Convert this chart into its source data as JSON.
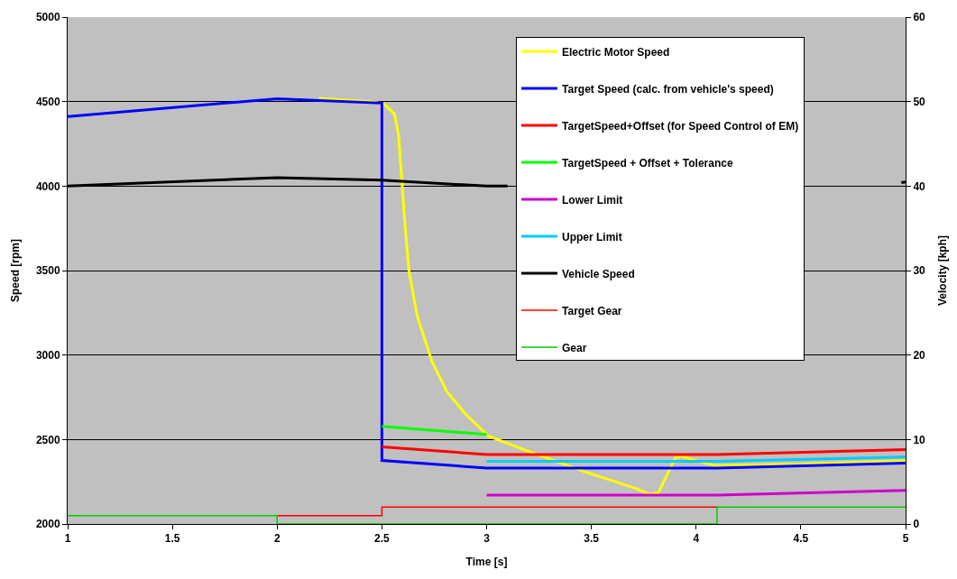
{
  "chart_data": {
    "type": "line",
    "xlabel": "Time [s]",
    "ylabel": "Speed [rpm]",
    "y2label": "Velocity [kph]",
    "xlim": [
      1,
      5
    ],
    "xticks": [
      1,
      1.5,
      2,
      2.5,
      3,
      3.5,
      4,
      4.5,
      5
    ],
    "ylim": [
      2000,
      5000
    ],
    "yticks": [
      2000,
      2500,
      3000,
      3500,
      4000,
      4500,
      5000
    ],
    "y2lim": [
      0,
      60
    ],
    "y2ticks": [
      0,
      10,
      20,
      30,
      40,
      50,
      60
    ],
    "grid": "y",
    "legend": "top right",
    "marker": "none",
    "line_style": "solid",
    "series": [
      {
        "name": "Electric Motor Speed",
        "color": "#ffff00",
        "x": [
          2.2,
          2.45,
          2.51,
          2.56,
          2.58,
          2.595,
          2.61,
          2.63,
          2.67,
          2.74,
          2.81,
          2.9,
          3.01,
          3.2,
          3.46,
          3.71,
          3.78,
          3.82,
          3.9,
          3.93,
          4.09,
          4.5,
          5
        ],
        "values": [
          4520,
          4500,
          4487,
          4427,
          4300,
          4036,
          3775,
          3490,
          3224,
          2960,
          2784,
          2650,
          2519,
          2430,
          2313,
          2212,
          2175,
          2185,
          2390,
          2400,
          2345,
          2355,
          2375
        ]
      },
      {
        "name": "Target Speed (calc. from vehicle's speed)",
        "color": "#0000ff",
        "x": [
          1,
          2,
          2.5,
          2.5,
          3,
          4.1,
          5
        ],
        "values": [
          4411,
          4517,
          4491,
          2376,
          2331,
          2331,
          2360
        ]
      },
      {
        "name": "TargetSpeed+Offset (for Speed Control of EM)",
        "color": "#ff0000",
        "x": [
          2.5,
          3,
          4.1,
          5
        ],
        "values": [
          2456,
          2411,
          2411,
          2440
        ]
      },
      {
        "name": "TargetSpeed + Offset + Tolerance",
        "color": "#00ff00",
        "x": [
          2.5,
          3
        ],
        "values": [
          2578,
          2530
        ]
      },
      {
        "name": "Lower Limit",
        "color": "#cc00cc",
        "x": [
          3,
          4.1,
          5
        ],
        "values": [
          2171,
          2171,
          2199
        ]
      },
      {
        "name": "Upper Limit",
        "color": "#00ccff",
        "x": [
          3,
          4.1,
          5
        ],
        "values": [
          2371,
          2371,
          2397
        ]
      },
      {
        "name": "Vehicle Speed",
        "color": "#000000",
        "axis": "y2",
        "x": [
          1,
          2,
          2.5,
          3,
          3.1,
          4,
          4.98,
          5
        ],
        "values": [
          40,
          41,
          40.7,
          40,
          40,
          null,
          40.4,
          40.5
        ]
      },
      {
        "name": "Target Gear",
        "color": "#ff0000",
        "axis": "y2",
        "type": "step",
        "x": [
          2,
          2.5,
          4.1
        ],
        "values": [
          1,
          2,
          2
        ]
      },
      {
        "name": "Gear",
        "color": "#00cc00",
        "axis": "y2",
        "type": "step",
        "x": [
          1,
          2,
          4.1,
          5
        ],
        "values": [
          1,
          0,
          2,
          2
        ]
      }
    ]
  }
}
